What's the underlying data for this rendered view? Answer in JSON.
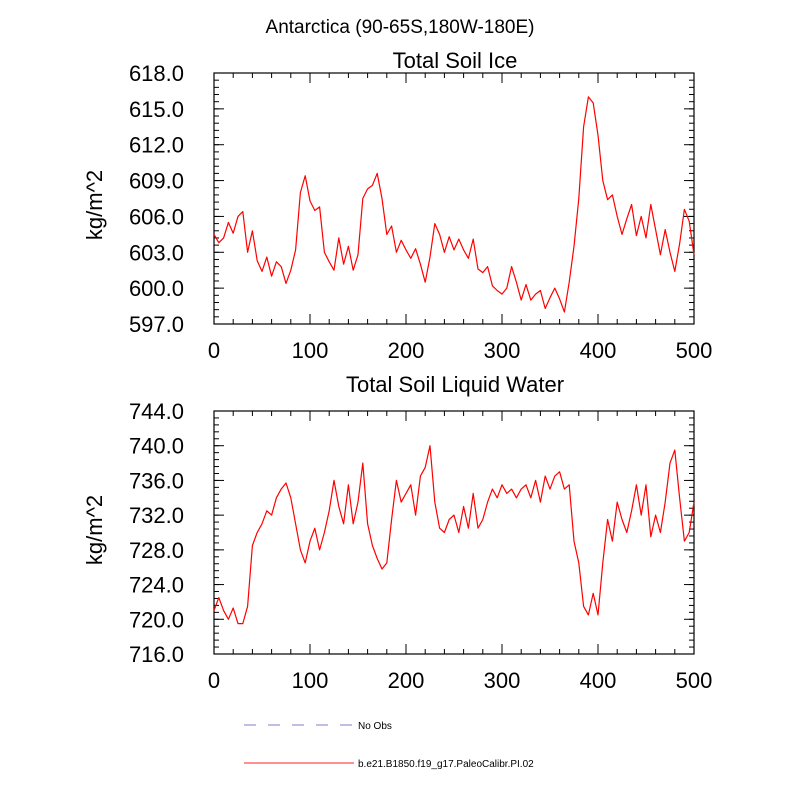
{
  "suptitle": "Antarctica (90-65S,180W-180E)",
  "legend": [
    {
      "label": "No Obs",
      "color": "#a8a8e0",
      "dash": "dashed"
    },
    {
      "label": "b.e21.B1850.f19_g17.PaleoCalibr.PI.02",
      "color": "#ff6b6b",
      "dash": "solid"
    }
  ],
  "chart_data": [
    {
      "type": "line",
      "title": "Total Soil Ice",
      "xlabel": "",
      "ylabel": "kg/m^2",
      "xlim": [
        0,
        500
      ],
      "ylim": [
        597.0,
        618.0
      ],
      "xticks": [
        0,
        100,
        200,
        300,
        400,
        500
      ],
      "xtick_labels": [
        "0",
        "100",
        "200",
        "300",
        "400",
        "500"
      ],
      "yticks": [
        597.0,
        600.0,
        603.0,
        606.0,
        609.0,
        612.0,
        615.0,
        618.0
      ],
      "ytick_labels": [
        "597.0",
        "600.0",
        "603.0",
        "606.0",
        "609.0",
        "612.0",
        "615.0",
        "618.0"
      ],
      "series": [
        {
          "name": "b.e21.B1850.f19_g17.PaleoCalibr.PI.02",
          "color": "#ff0000",
          "x": [
            0,
            5,
            10,
            15,
            20,
            25,
            30,
            35,
            40,
            45,
            50,
            55,
            60,
            65,
            70,
            75,
            80,
            85,
            90,
            95,
            100,
            105,
            110,
            115,
            120,
            125,
            130,
            135,
            140,
            145,
            150,
            155,
            160,
            165,
            170,
            175,
            180,
            185,
            190,
            195,
            200,
            205,
            210,
            215,
            220,
            225,
            230,
            235,
            240,
            245,
            250,
            255,
            260,
            265,
            270,
            275,
            280,
            285,
            290,
            295,
            300,
            305,
            310,
            315,
            320,
            325,
            330,
            335,
            340,
            345,
            350,
            355,
            360,
            365,
            370,
            375,
            380,
            385,
            390,
            395,
            400,
            405,
            410,
            415,
            420,
            425,
            430,
            435,
            440,
            445,
            450,
            455,
            460,
            465,
            470,
            475,
            480,
            485,
            490,
            495,
            500
          ],
          "y": [
            604.5,
            603.8,
            604.2,
            605.5,
            604.6,
            606.0,
            606.4,
            603.0,
            604.8,
            602.3,
            601.4,
            602.6,
            601.0,
            602.2,
            601.8,
            600.4,
            601.5,
            603.2,
            608.0,
            609.4,
            607.3,
            606.5,
            606.8,
            603.0,
            602.2,
            601.5,
            604.2,
            602.0,
            603.5,
            601.5,
            602.8,
            607.5,
            608.3,
            608.6,
            609.6,
            607.5,
            604.5,
            605.2,
            603.0,
            604.0,
            603.2,
            602.5,
            603.3,
            602.0,
            600.5,
            602.6,
            605.4,
            604.5,
            603.0,
            604.3,
            603.2,
            604.1,
            603.2,
            602.5,
            604.1,
            601.6,
            601.3,
            601.8,
            600.2,
            599.8,
            599.5,
            600.0,
            601.8,
            600.5,
            599.0,
            600.3,
            599.0,
            599.5,
            599.8,
            598.3,
            599.2,
            600.0,
            599.1,
            598.0,
            600.5,
            603.5,
            607.5,
            613.5,
            616.0,
            615.5,
            612.8,
            609.0,
            607.4,
            607.8,
            606.0,
            604.5,
            605.8,
            607.0,
            604.4,
            606.0,
            604.2,
            607.0,
            604.9,
            602.8,
            604.9,
            603.0,
            601.4,
            603.7,
            606.6,
            605.6,
            602.8
          ]
        }
      ]
    },
    {
      "type": "line",
      "title": "Total Soil Liquid Water",
      "xlabel": "",
      "ylabel": "kg/m^2",
      "xlim": [
        0,
        500
      ],
      "ylim": [
        716.0,
        744.0
      ],
      "xticks": [
        0,
        100,
        200,
        300,
        400,
        500
      ],
      "xtick_labels": [
        "0",
        "100",
        "200",
        "300",
        "400",
        "500"
      ],
      "yticks": [
        716.0,
        720.0,
        724.0,
        728.0,
        732.0,
        736.0,
        740.0,
        744.0
      ],
      "ytick_labels": [
        "716.0",
        "720.0",
        "724.0",
        "728.0",
        "732.0",
        "736.0",
        "740.0",
        "744.0"
      ],
      "series": [
        {
          "name": "b.e21.B1850.f19_g17.PaleoCalibr.PI.02",
          "color": "#ff0000",
          "x": [
            0,
            5,
            10,
            15,
            20,
            25,
            30,
            35,
            40,
            45,
            50,
            55,
            60,
            65,
            70,
            75,
            80,
            85,
            90,
            95,
            100,
            105,
            110,
            115,
            120,
            125,
            130,
            135,
            140,
            145,
            150,
            155,
            160,
            165,
            170,
            175,
            180,
            185,
            190,
            195,
            200,
            205,
            210,
            215,
            220,
            225,
            230,
            235,
            240,
            245,
            250,
            255,
            260,
            265,
            270,
            275,
            280,
            285,
            290,
            295,
            300,
            305,
            310,
            315,
            320,
            325,
            330,
            335,
            340,
            345,
            350,
            355,
            360,
            365,
            370,
            375,
            380,
            385,
            390,
            395,
            400,
            405,
            410,
            415,
            420,
            425,
            430,
            435,
            440,
            445,
            450,
            455,
            460,
            465,
            470,
            475,
            480,
            485,
            490,
            495,
            500
          ],
          "y": [
            721.0,
            722.5,
            721.0,
            720.0,
            721.3,
            719.5,
            719.5,
            721.5,
            728.5,
            730.0,
            731.0,
            732.5,
            732.0,
            734.0,
            735.0,
            735.7,
            734.0,
            731.0,
            728.0,
            726.5,
            729.0,
            730.5,
            728.0,
            730.0,
            732.5,
            736.0,
            733.0,
            731.0,
            735.5,
            731.0,
            733.5,
            738.0,
            731.0,
            728.5,
            727.0,
            725.8,
            726.5,
            731.5,
            736.0,
            733.5,
            734.5,
            735.5,
            732.0,
            736.5,
            737.5,
            740.0,
            733.5,
            730.5,
            730.0,
            731.5,
            732.0,
            730.0,
            733.0,
            730.5,
            734.5,
            730.5,
            731.5,
            733.5,
            735.0,
            734.0,
            735.5,
            734.5,
            735.0,
            734.0,
            735.0,
            735.5,
            734.0,
            736.0,
            733.5,
            736.5,
            735.0,
            736.5,
            737.0,
            735.0,
            735.5,
            729.0,
            726.5,
            721.5,
            720.5,
            723.0,
            720.5,
            726.5,
            731.5,
            729.0,
            733.5,
            731.5,
            730.0,
            732.5,
            735.5,
            732.0,
            735.5,
            729.5,
            732.0,
            730.0,
            733.5,
            738.0,
            739.5,
            734.0,
            729.0,
            730.0,
            733.5
          ]
        }
      ]
    }
  ]
}
